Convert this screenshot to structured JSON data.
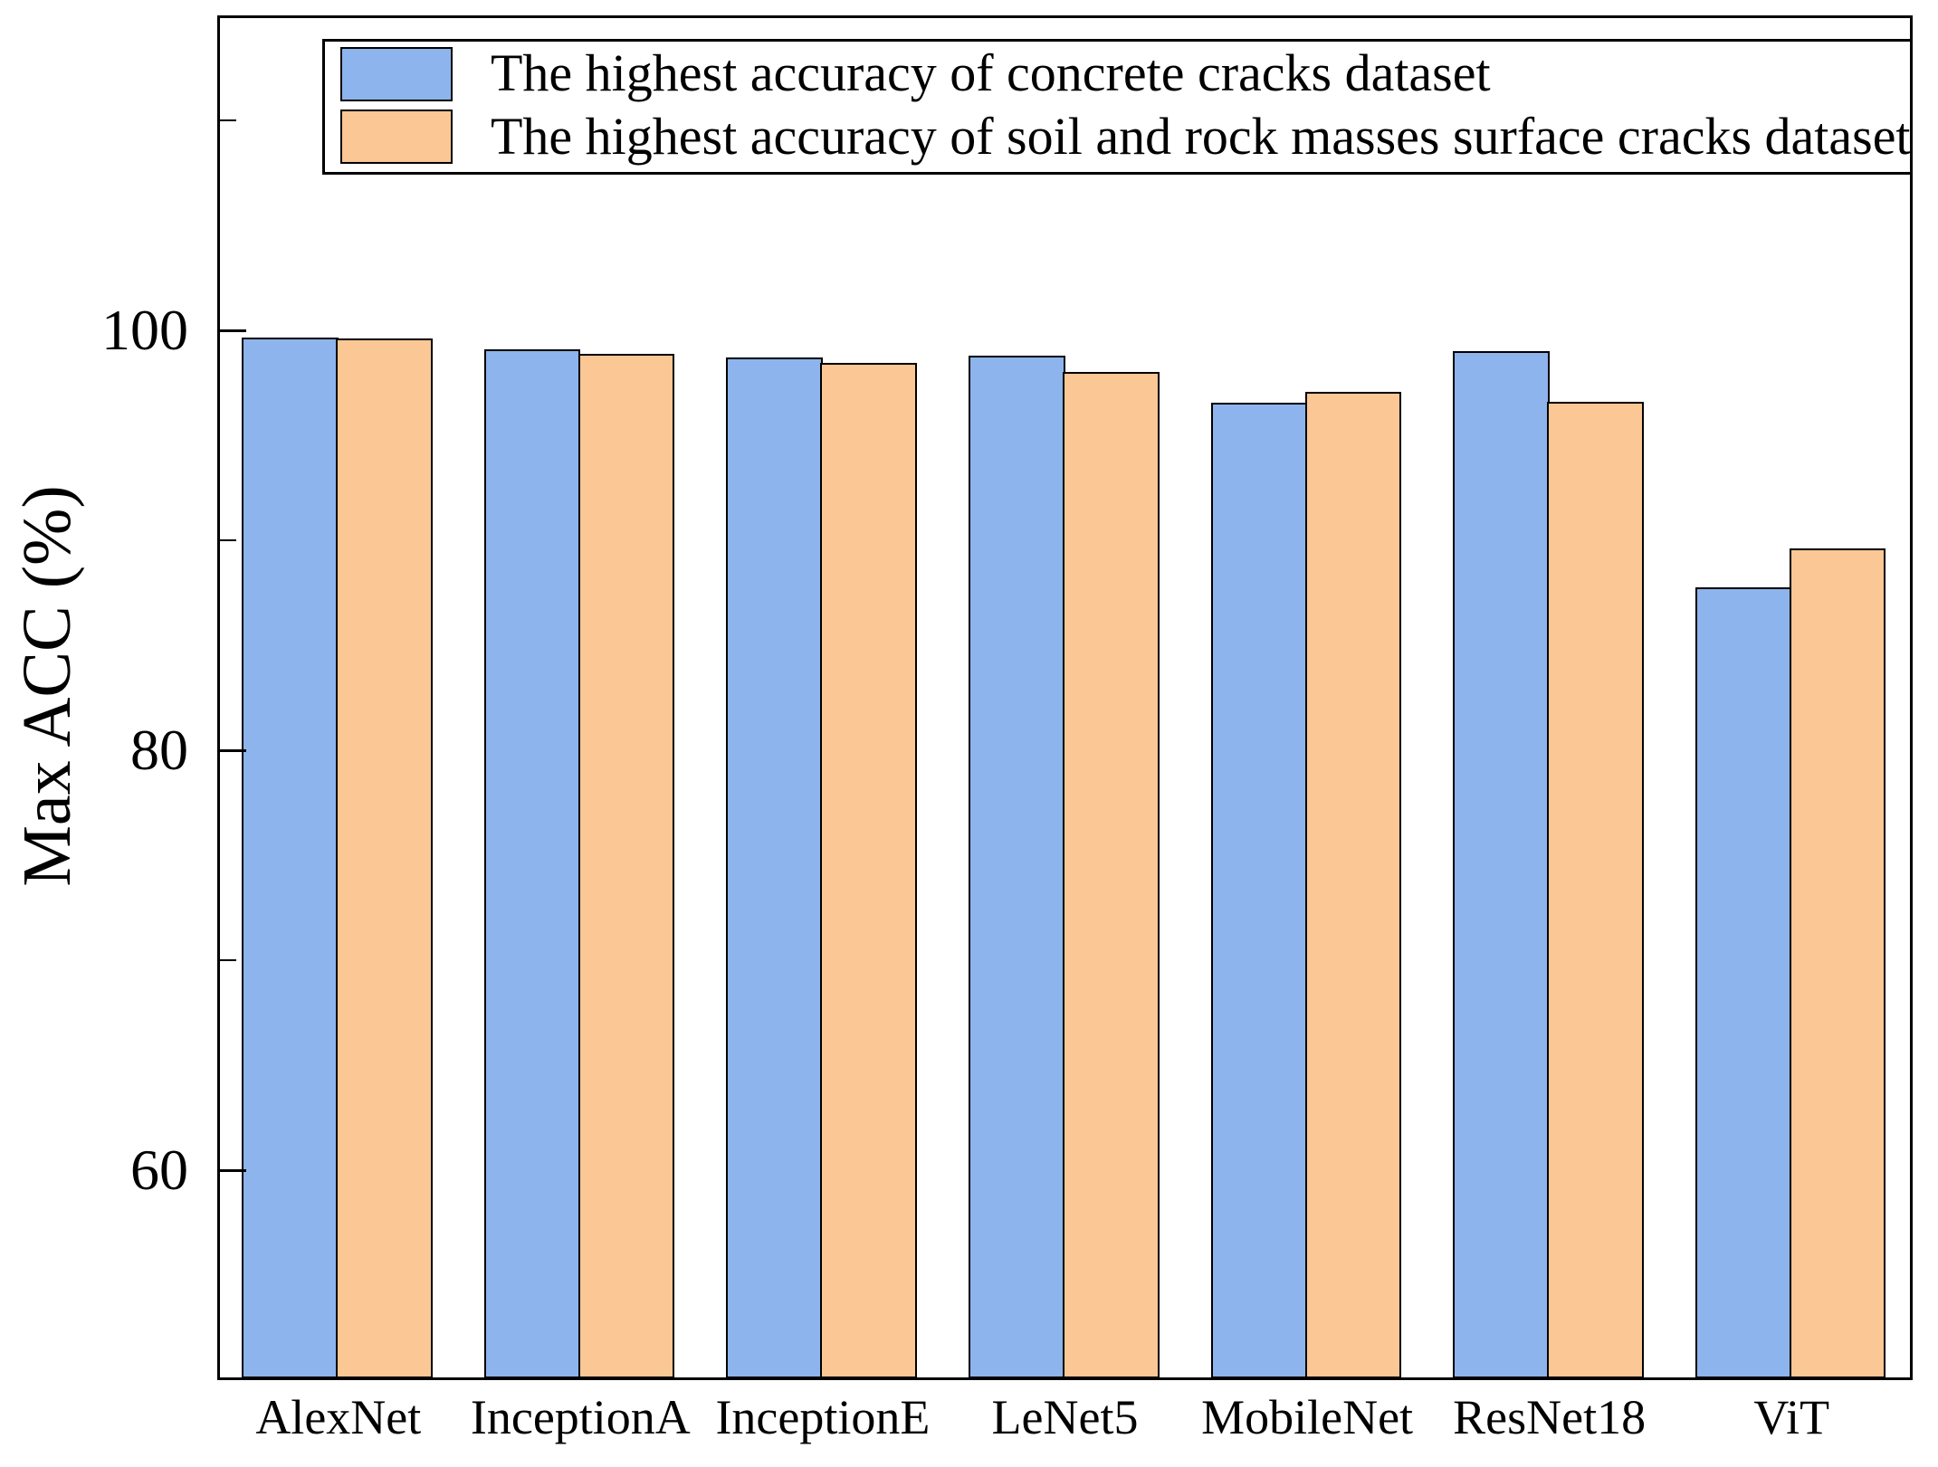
{
  "figure": {
    "background": "#ffffff"
  },
  "chart_data": {
    "type": "bar",
    "title": "",
    "xlabel": "",
    "ylabel": "Max ACC (%)",
    "categories": [
      "AlexNet",
      "InceptionA",
      "InceptionE",
      "LeNet5",
      "MobileNet",
      "ResNet18",
      "ViT"
    ],
    "series": [
      {
        "name": "The highest accuracy of concrete cracks dataset",
        "color": "#8DB4EC",
        "values": [
          99.65,
          99.1,
          98.7,
          98.8,
          96.55,
          99.0,
          87.75
        ]
      },
      {
        "name": "The highest accuracy of soil and rock masses surface cracks dataset",
        "color": "#FAC795",
        "values": [
          99.6,
          98.9,
          98.45,
          98.0,
          97.05,
          96.6,
          89.6
        ]
      }
    ],
    "ylim": [
      50,
      115
    ],
    "yticks_major": [
      60,
      80,
      100
    ],
    "yticks_minor": [
      70,
      90,
      110
    ],
    "grid": false,
    "legend_position": "upper left inside axes",
    "bar_edge_color": "#000000"
  }
}
